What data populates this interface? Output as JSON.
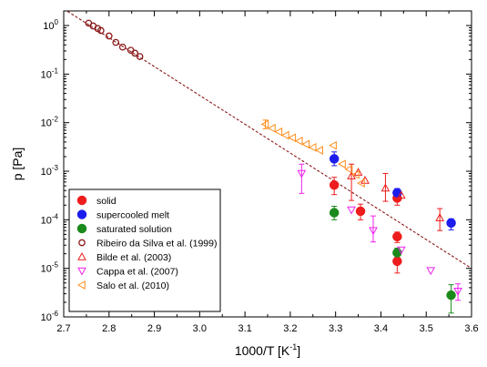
{
  "chart_data": {
    "type": "scatter",
    "xlabel": "1000/T [K",
    "xlabel_sup": "-1",
    "xlabel_end": "]",
    "ylabel": "p [Pa]",
    "x_scale": "linear",
    "y_scale": "log",
    "xlim": [
      2.7,
      3.6
    ],
    "ylim": [
      1e-06,
      2
    ],
    "x_ticks": [
      2.7,
      2.8,
      2.9,
      3.0,
      3.1,
      3.2,
      3.3,
      3.4,
      3.5,
      3.6
    ],
    "x_tick_labels": [
      "2.7",
      "2.8",
      "2.9",
      "3.0",
      "3.1",
      "3.2",
      "3.3",
      "3.4",
      "3.5",
      "3.6"
    ],
    "y_tick_exponents": [
      -6,
      -5,
      -4,
      -3,
      -2,
      -1,
      0
    ],
    "y_tick_labels": [
      {
        "base": "10",
        "exp": "-6"
      },
      {
        "base": "10",
        "exp": "-5"
      },
      {
        "base": "10",
        "exp": "-4"
      },
      {
        "base": "10",
        "exp": "-3"
      },
      {
        "base": "10",
        "exp": "-2"
      },
      {
        "base": "10",
        "exp": "-1"
      },
      {
        "base": "10",
        "exp": "0"
      }
    ],
    "legend_position": "bottom-left",
    "fit_line": {
      "x": [
        2.7,
        3.6
      ],
      "y": [
        2.2,
        1e-05
      ],
      "color": "#8b1a1a",
      "style": "dashed"
    },
    "series": [
      {
        "name": "solid",
        "marker": "circle-filled",
        "color": "#ee1c1c",
        "points": [
          {
            "x": 3.297,
            "y": 0.00052,
            "ylo": 0.00033,
            "yhi": 0.00075
          },
          {
            "x": 3.355,
            "y": 0.00015,
            "ylo": 0.0001,
            "yhi": 0.00021
          },
          {
            "x": 3.436,
            "y": 0.00028,
            "ylo": 0.0002,
            "yhi": 0.00038
          },
          {
            "x": 3.436,
            "y": 4.5e-05,
            "ylo": 3.4e-05,
            "yhi": 5.6e-05
          },
          {
            "x": 3.436,
            "y": 1.4e-05,
            "ylo": 8e-06,
            "yhi": 2.2e-05
          }
        ]
      },
      {
        "name": "supercooled melt",
        "marker": "circle-filled",
        "color": "#1c1cee",
        "points": [
          {
            "x": 3.297,
            "y": 0.0018,
            "ylo": 0.0013,
            "yhi": 0.0025
          },
          {
            "x": 3.436,
            "y": 0.00036,
            "ylo": 0.00029,
            "yhi": 0.00044
          },
          {
            "x": 3.555,
            "y": 8.6e-05,
            "ylo": 6.2e-05,
            "yhi": 0.000105
          }
        ]
      },
      {
        "name": "saturated solution",
        "marker": "circle-filled",
        "color": "#1a8a1a",
        "points": [
          {
            "x": 3.297,
            "y": 0.00014,
            "ylo": 0.0001,
            "yhi": 0.00019
          },
          {
            "x": 3.436,
            "y": 2.1e-05,
            "ylo": 1.7e-05,
            "yhi": 2.6e-05
          },
          {
            "x": 3.555,
            "y": 2.8e-06,
            "ylo": 1.2e-06,
            "yhi": 4.6e-06
          }
        ]
      },
      {
        "name": "Ribeiro da Silva et al. (1999)",
        "marker": "circle-open",
        "color": "#8b1a1a",
        "points": [
          {
            "x": 2.755,
            "y": 1.12
          },
          {
            "x": 2.765,
            "y": 0.98
          },
          {
            "x": 2.775,
            "y": 0.87
          },
          {
            "x": 2.782,
            "y": 0.79
          },
          {
            "x": 2.8,
            "y": 0.61
          },
          {
            "x": 2.815,
            "y": 0.45
          },
          {
            "x": 2.83,
            "y": 0.36
          },
          {
            "x": 2.848,
            "y": 0.31
          },
          {
            "x": 2.857,
            "y": 0.27
          },
          {
            "x": 2.868,
            "y": 0.23
          }
        ]
      },
      {
        "name": "Bilde et al. (2003)",
        "marker": "triangle-up-open",
        "color": "#ee1c1c",
        "points": [
          {
            "x": 3.335,
            "y": 0.0008,
            "ylo": 0.00025,
            "yhi": 0.0014
          },
          {
            "x": 3.35,
            "y": 0.00095
          },
          {
            "x": 3.365,
            "y": 0.00065
          },
          {
            "x": 3.41,
            "y": 0.00045,
            "ylo": 0.00024,
            "yhi": 0.0009
          },
          {
            "x": 3.445,
            "y": 0.00032
          },
          {
            "x": 3.53,
            "y": 0.00011,
            "ylo": 6e-05,
            "yhi": 0.00017
          }
        ]
      },
      {
        "name": "Cappa et al. (2007)",
        "marker": "triangle-down-open",
        "color": "#ee22ee",
        "points": [
          {
            "x": 3.225,
            "y": 0.0009,
            "ylo": 0.00035,
            "yhi": 0.0014
          },
          {
            "x": 3.335,
            "y": 0.00016
          },
          {
            "x": 3.383,
            "y": 6e-05,
            "ylo": 3.5e-05,
            "yhi": 0.00012
          },
          {
            "x": 3.445,
            "y": 2.4e-05
          },
          {
            "x": 3.51,
            "y": 9e-06
          },
          {
            "x": 3.57,
            "y": 3.4e-06,
            "ylo": 2.2e-06,
            "yhi": 4.8e-06
          }
        ]
      },
      {
        "name": "Salo et al. (2010)",
        "marker": "triangle-left-open",
        "color": "#ff8c1a",
        "points": [
          {
            "x": 3.145,
            "y": 0.0093,
            "ylo": 0.0075,
            "yhi": 0.0113
          },
          {
            "x": 3.16,
            "y": 0.0077
          },
          {
            "x": 3.175,
            "y": 0.0065
          },
          {
            "x": 3.19,
            "y": 0.0055
          },
          {
            "x": 3.205,
            "y": 0.0049
          },
          {
            "x": 3.22,
            "y": 0.0042
          },
          {
            "x": 3.235,
            "y": 0.0036
          },
          {
            "x": 3.25,
            "y": 0.0031
          },
          {
            "x": 3.265,
            "y": 0.0027
          },
          {
            "x": 3.295,
            "y": 0.0034
          },
          {
            "x": 3.315,
            "y": 0.0014
          },
          {
            "x": 3.33,
            "y": 0.0011
          },
          {
            "x": 3.345,
            "y": 0.00085
          },
          {
            "x": 3.357,
            "y": 0.00057
          }
        ]
      }
    ]
  }
}
